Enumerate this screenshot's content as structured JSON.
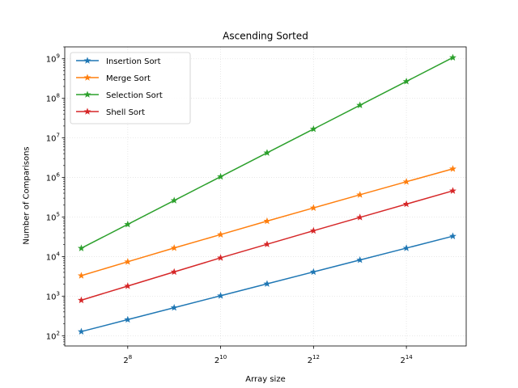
{
  "chart_data": {
    "type": "line",
    "title": "Ascending Sorted",
    "xlabel": "Array size",
    "ylabel": "Number of Comparisons",
    "xscale": "log2",
    "yscale": "log10",
    "xlim": [
      100,
      40000
    ],
    "ylim": [
      55,
      2000000000
    ],
    "grid": true,
    "legend_position": "top-left",
    "marker": "star",
    "x": [
      128,
      256,
      512,
      1024,
      2048,
      4096,
      8192,
      16384,
      32768
    ],
    "x_ticks": [
      {
        "value": 256,
        "base": "2",
        "exp": "8"
      },
      {
        "value": 1024,
        "base": "2",
        "exp": "10"
      },
      {
        "value": 4096,
        "base": "2",
        "exp": "12"
      },
      {
        "value": 16384,
        "base": "2",
        "exp": "14"
      }
    ],
    "y_ticks": [
      {
        "value": 100,
        "base": "10",
        "exp": "2"
      },
      {
        "value": 1000,
        "base": "10",
        "exp": "3"
      },
      {
        "value": 10000,
        "base": "10",
        "exp": "4"
      },
      {
        "value": 100000,
        "base": "10",
        "exp": "5"
      },
      {
        "value": 1000000,
        "base": "10",
        "exp": "6"
      },
      {
        "value": 10000000,
        "base": "10",
        "exp": "7"
      },
      {
        "value": 100000000,
        "base": "10",
        "exp": "8"
      },
      {
        "value": 1000000000,
        "base": "10",
        "exp": "9"
      }
    ],
    "series": [
      {
        "name": "Insertion Sort",
        "color": "#1f77b4",
        "values": [
          127,
          255,
          511,
          1023,
          2047,
          4095,
          8191,
          16383,
          32767
        ]
      },
      {
        "name": "Merge Sort",
        "color": "#ff7f0e",
        "values": [
          3300,
          7400,
          16500,
          36000,
          79000,
          170000,
          365000,
          780000,
          1650000
        ]
      },
      {
        "name": "Selection Sort",
        "color": "#2ca02c",
        "values": [
          16256,
          65280,
          261632,
          1047552,
          4192256,
          16773120,
          67104768,
          268419072,
          1073709056
        ]
      },
      {
        "name": "Shell Sort",
        "color": "#d62728",
        "values": [
          790,
          1800,
          4100,
          9300,
          20500,
          45000,
          98000,
          212000,
          460000
        ]
      }
    ]
  }
}
